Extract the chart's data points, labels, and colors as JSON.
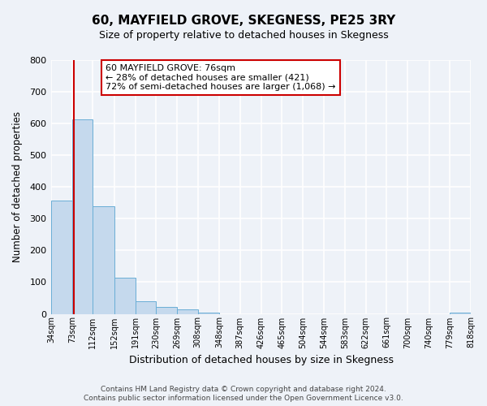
{
  "title": "60, MAYFIELD GROVE, SKEGNESS, PE25 3RY",
  "subtitle": "Size of property relative to detached houses in Skegness",
  "xlabel": "Distribution of detached houses by size in Skegness",
  "ylabel": "Number of detached properties",
  "bar_edges": [
    34,
    73,
    112,
    152,
    191,
    230,
    269,
    308,
    348,
    387,
    426,
    465,
    504,
    544,
    583,
    622,
    661,
    700,
    740,
    779,
    818
  ],
  "bar_heights": [
    358,
    612,
    340,
    115,
    40,
    22,
    14,
    5,
    0,
    0,
    0,
    0,
    0,
    0,
    0,
    0,
    0,
    0,
    0,
    5
  ],
  "bar_color": "#c5d9ed",
  "bar_edge_color": "#6aaed6",
  "tick_labels": [
    "34sqm",
    "73sqm",
    "112sqm",
    "152sqm",
    "191sqm",
    "230sqm",
    "269sqm",
    "308sqm",
    "348sqm",
    "387sqm",
    "426sqm",
    "465sqm",
    "504sqm",
    "544sqm",
    "583sqm",
    "622sqm",
    "661sqm",
    "700sqm",
    "740sqm",
    "779sqm",
    "818sqm"
  ],
  "ylim": [
    0,
    800
  ],
  "yticks": [
    0,
    100,
    200,
    300,
    400,
    500,
    600,
    700,
    800
  ],
  "red_line_x": 76,
  "annotation_text": "60 MAYFIELD GROVE: 76sqm\n← 28% of detached houses are smaller (421)\n72% of semi-detached houses are larger (1,068) →",
  "annotation_box_facecolor": "#ffffff",
  "annotation_box_edgecolor": "#cc0000",
  "footer_line1": "Contains HM Land Registry data © Crown copyright and database right 2024.",
  "footer_line2": "Contains public sector information licensed under the Open Government Licence v3.0.",
  "bg_color": "#eef2f8",
  "grid_color": "#ffffff",
  "title_fontsize": 11,
  "subtitle_fontsize": 9,
  "ylabel_fontsize": 8.5,
  "xlabel_fontsize": 9
}
